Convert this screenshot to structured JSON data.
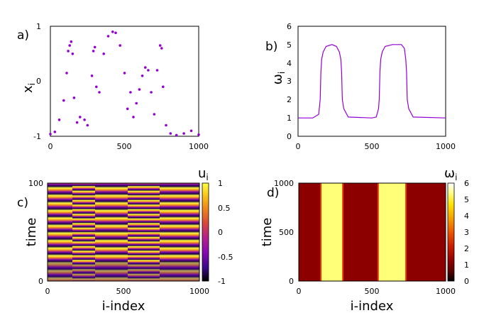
{
  "chart_data": [
    {
      "panel": "a)",
      "type": "scatter",
      "xlabel": "",
      "ylabel": "x_i",
      "ylabel_main": "x",
      "ylabel_sub": "i",
      "xlim": [
        0,
        1000
      ],
      "ylim": [
        -1,
        1
      ],
      "xticks": [
        "0",
        "500",
        "1000"
      ],
      "yticks": [
        "-1",
        "0",
        "1"
      ],
      "color": "#9400d3",
      "x": [
        0,
        30,
        60,
        90,
        110,
        120,
        130,
        140,
        150,
        160,
        180,
        200,
        230,
        250,
        280,
        290,
        300,
        310,
        330,
        360,
        390,
        420,
        440,
        470,
        500,
        520,
        540,
        560,
        580,
        600,
        620,
        640,
        660,
        680,
        700,
        720,
        740,
        750,
        760,
        780,
        810,
        850,
        900,
        950,
        1000
      ],
      "y": [
        -0.96,
        -0.92,
        -0.7,
        -0.35,
        0.15,
        0.55,
        0.65,
        0.72,
        0.5,
        -0.3,
        -0.75,
        -0.65,
        -0.7,
        -0.8,
        0.1,
        0.55,
        0.62,
        -0.1,
        -0.2,
        0.5,
        0.82,
        0.9,
        0.88,
        0.65,
        0.15,
        -0.5,
        -0.2,
        -0.65,
        -0.4,
        -0.15,
        0.1,
        0.25,
        0.2,
        -0.2,
        -0.6,
        0.2,
        0.65,
        0.6,
        -0.1,
        -0.8,
        -0.95,
        -0.98,
        -0.95,
        -0.9,
        -0.97
      ]
    },
    {
      "panel": "b)",
      "type": "line",
      "xlabel": "",
      "ylabel": "ω_i",
      "ylabel_main": "ω",
      "ylabel_sub": "i",
      "xlim": [
        0,
        1000
      ],
      "ylim": [
        0,
        6
      ],
      "xticks": [
        "0",
        "500",
        "1000"
      ],
      "yticks": [
        "0",
        "1",
        "2",
        "3",
        "4",
        "5",
        "6"
      ],
      "color": "#9400d3",
      "x": [
        0,
        100,
        140,
        150,
        155,
        160,
        170,
        190,
        230,
        260,
        280,
        290,
        295,
        300,
        310,
        340,
        500,
        530,
        545,
        550,
        555,
        560,
        570,
        590,
        640,
        700,
        720,
        730,
        735,
        740,
        750,
        780,
        1000
      ],
      "y": [
        1,
        1,
        1.2,
        2.0,
        3.5,
        4.2,
        4.6,
        4.9,
        5,
        4.9,
        4.6,
        4.2,
        3.5,
        2.0,
        1.5,
        1.05,
        1,
        1.05,
        1.5,
        2.0,
        3.5,
        4.2,
        4.6,
        4.9,
        5,
        5,
        4.8,
        4.2,
        3.5,
        2.0,
        1.5,
        1.05,
        1
      ]
    },
    {
      "panel": "c)",
      "type": "heatmap",
      "xlabel": "i-index",
      "ylabel": "time",
      "xlim": [
        0,
        1000
      ],
      "ylim": [
        0,
        100
      ],
      "xticks": [
        "0",
        "500",
        "1000"
      ],
      "yticks": [
        "0",
        "100"
      ],
      "colorbar_title": "u_i",
      "colorbar_main": "u",
      "colorbar_sub": "i",
      "colorbar_ticks": [
        "1",
        "0.5",
        "0",
        "-0.5",
        "-1"
      ],
      "zlim": [
        -1,
        1
      ],
      "colormap": [
        "#000000",
        "#3a0a8c",
        "#8a0ab0",
        "#b8208a",
        "#dd4a36",
        "#f08a1c",
        "#f8c81c",
        "#ffff40"
      ]
    },
    {
      "panel": "d)",
      "type": "heatmap",
      "xlabel": "i-index",
      "ylabel": "time",
      "xlim": [
        0,
        1000
      ],
      "ylim": [
        0,
        1000
      ],
      "xticks": [
        "0",
        "500",
        "1000"
      ],
      "yticks": [
        "0",
        "500",
        "1000"
      ],
      "colorbar_title": "ω_i",
      "colorbar_main": "ω",
      "colorbar_sub": "i",
      "colorbar_ticks": [
        "6",
        "5",
        "4",
        "3",
        "2",
        "1",
        "0"
      ],
      "zlim": [
        0,
        6
      ],
      "colormap": [
        "#000000",
        "#5a0000",
        "#8c0000",
        "#cc1a00",
        "#ee5500",
        "#f5a400",
        "#ffe000",
        "#ffff88",
        "#ffffff"
      ],
      "high_bands": [
        [
          150,
          300
        ],
        [
          540,
          730
        ]
      ],
      "low_value": 1,
      "high_value": 5
    }
  ]
}
